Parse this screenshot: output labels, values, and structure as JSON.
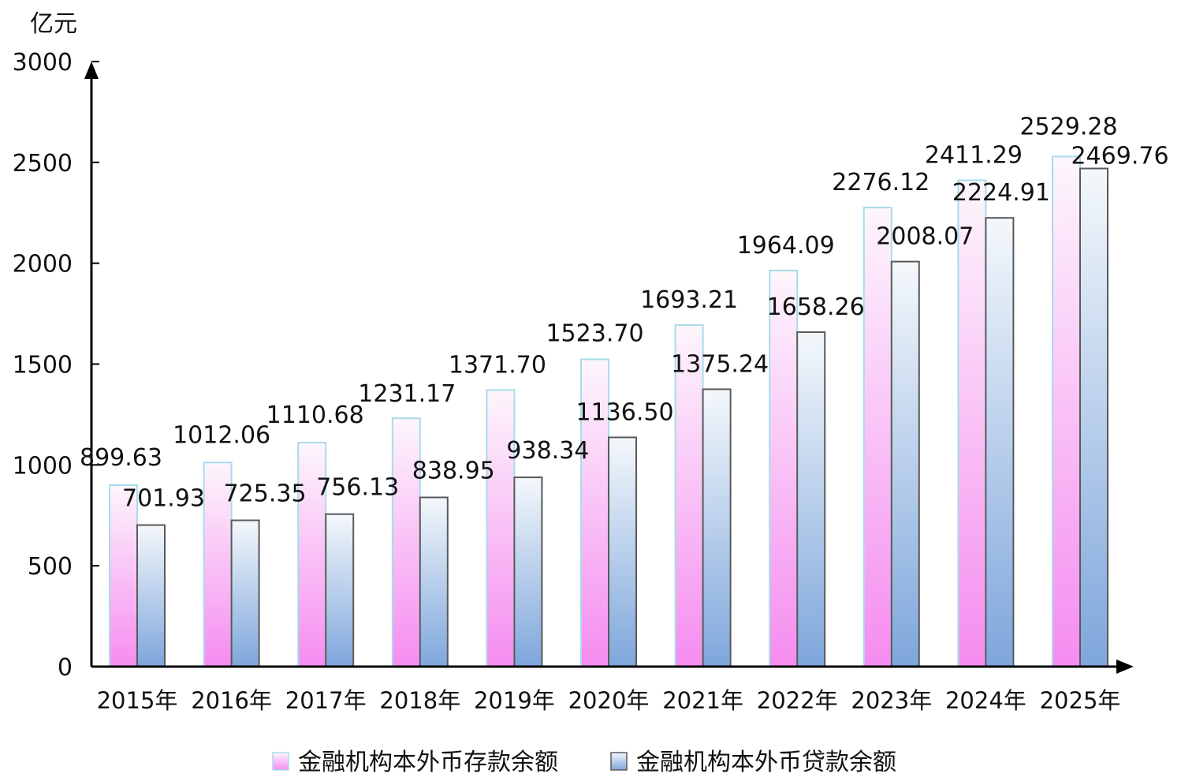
{
  "chart_data": {
    "type": "bar",
    "unit_label": "亿元",
    "categories": [
      "2015年",
      "2016年",
      "2017年",
      "2018年",
      "2019年",
      "2020年",
      "2021年",
      "2022年",
      "2023年",
      "2024年",
      "2025年"
    ],
    "series": [
      {
        "name": "金融机构本外币存款余额",
        "values": [
          899.63,
          1012.06,
          1110.68,
          1231.17,
          1371.7,
          1523.7,
          1693.21,
          1964.09,
          2276.12,
          2411.29,
          2529.28
        ],
        "labels": [
          "899.63",
          "1012.06",
          "1110.68",
          "1231.17",
          "1371.70",
          "1523.70",
          "1693.21",
          "1964.09",
          "2276.12",
          "2411.29",
          "2529.28"
        ]
      },
      {
        "name": "金融机构本外币贷款余额",
        "values": [
          701.93,
          725.35,
          756.13,
          838.95,
          938.34,
          1136.5,
          1375.24,
          1658.26,
          2008.07,
          2224.91,
          2469.76
        ],
        "labels": [
          "701.93",
          "725.35",
          "756.13",
          "838.95",
          "938.34",
          "1136.50",
          "1375.24",
          "1658.26",
          "2008.07",
          "2224.91",
          "2469.76"
        ]
      }
    ],
    "ylim": [
      0,
      3000
    ],
    "yticks": [
      0,
      500,
      1000,
      1500,
      2000,
      2500,
      3000
    ],
    "grid": false,
    "legend_position": "bottom"
  },
  "colors": {
    "deposit_top": "#fdf6fc",
    "deposit_bottom": "#f58cf0",
    "deposit_stroke": "#a8dcea",
    "loan_top": "#f4f8fb",
    "loan_bottom": "#7ea6dc",
    "loan_stroke": "#5a5a5a",
    "axis": "#000000"
  }
}
